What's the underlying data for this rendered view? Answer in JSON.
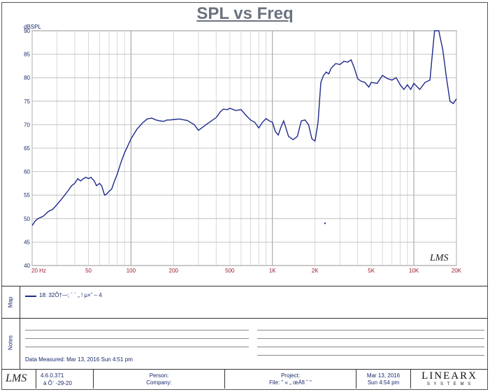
{
  "chart_data": {
    "type": "line",
    "title": "SPL vs Freq",
    "ylabel": "dBSPL",
    "xlabel": "",
    "xscale": "log",
    "xlim": [
      20,
      20000
    ],
    "ylim": [
      40,
      90
    ],
    "grid": true,
    "yticks": [
      "40",
      "45",
      "50",
      "55",
      "60",
      "65",
      "70",
      "75",
      "80",
      "85",
      "90"
    ],
    "xticks": [
      {
        "v": 20,
        "label": "20 Hz"
      },
      {
        "v": 50,
        "label": "50"
      },
      {
        "v": 100,
        "label": "100"
      },
      {
        "v": 200,
        "label": "200"
      },
      {
        "v": 500,
        "label": "500"
      },
      {
        "v": 1000,
        "label": "1K"
      },
      {
        "v": 2000,
        "label": "2K"
      },
      {
        "v": 5000,
        "label": "5K"
      },
      {
        "v": 10000,
        "label": "10K"
      },
      {
        "v": 20000,
        "label": "20K"
      }
    ],
    "series": [
      {
        "name": "18: 32Ô†—; ` ` „ ! µ×˘ – 4",
        "color": "#1f2a8c",
        "x": [
          20,
          21,
          22,
          24,
          26,
          28,
          30,
          32,
          34,
          36,
          38,
          40,
          42,
          44,
          46,
          48,
          50,
          52,
          55,
          57,
          60,
          62,
          65,
          67,
          70,
          73,
          76,
          80,
          85,
          90,
          95,
          100,
          105,
          110,
          120,
          130,
          140,
          150,
          160,
          170,
          180,
          190,
          200,
          220,
          250,
          280,
          300,
          350,
          400,
          430,
          450,
          480,
          500,
          550,
          600,
          650,
          700,
          750,
          800,
          850,
          900,
          950,
          1000,
          1050,
          1100,
          1150,
          1200,
          1300,
          1400,
          1500,
          1600,
          1700,
          1800,
          1900,
          2000,
          2100,
          2200,
          2300,
          2400,
          2500,
          2600,
          2800,
          3000,
          3200,
          3400,
          3600,
          3800,
          4000,
          4200,
          4500,
          4800,
          5000,
          5500,
          6000,
          6500,
          7000,
          7500,
          8000,
          8500,
          9000,
          9500,
          10000,
          11000,
          12000,
          13000,
          13500,
          14000,
          14500,
          15000,
          16000,
          17000,
          18000,
          19000,
          20000
        ],
        "y": [
          48.5,
          49.5,
          50,
          50.5,
          51.5,
          52,
          53,
          54,
          55,
          56,
          57,
          57.5,
          58.5,
          58,
          58.5,
          58.8,
          58.5,
          58.8,
          58,
          57,
          57.5,
          57,
          55,
          55.2,
          55.8,
          56.3,
          57.8,
          59.5,
          62,
          64,
          65.5,
          67,
          68,
          69,
          70.3,
          71.2,
          71.4,
          71,
          70.8,
          70.7,
          71,
          71,
          71.1,
          71.2,
          70.9,
          70,
          68.8,
          70.3,
          71.5,
          72.8,
          73.3,
          73.2,
          73.5,
          73,
          73.2,
          72,
          71,
          70.5,
          69.3,
          70.5,
          71.3,
          70.8,
          70.5,
          68.5,
          67.8,
          69.5,
          70.8,
          67.5,
          66.8,
          67.5,
          70.8,
          71,
          70,
          67,
          66.5,
          70.5,
          79,
          80.5,
          81.2,
          80.8,
          82,
          83,
          82.8,
          83.5,
          83.3,
          83.8,
          82,
          79.8,
          79.3,
          79,
          78,
          79,
          78.8,
          80.5,
          79.8,
          79.5,
          80,
          78.5,
          77.5,
          78.5,
          77.5,
          78.8,
          77.5,
          79,
          79.5,
          85,
          90,
          91,
          90,
          86,
          80,
          75,
          74.5,
          75.5
        ]
      }
    ]
  },
  "watermark": "LMS",
  "legend_section_label": "Map",
  "legend_entry": "18: 32Ô†—; ` ` „ ! µ×˘ – 4",
  "notes_section_label": "Notes",
  "date_measured": "Data Measured: Mar 13, 2016  Sun  4:51 pm",
  "footer": {
    "logo": "LMS",
    "version": "4.6.0.371",
    "version_sub": "à Ô` -29-20",
    "person_label": "Person:",
    "company_label": "Company:",
    "project_label": "Project:",
    "file_label": "File: \" « „ œÀfi ˘ \"",
    "date": "Mar 13, 2016",
    "time": "Sun  4:54 pm",
    "brand": "LINEARX",
    "brand_sub": "S Y S T E M S"
  },
  "stray_point": {
    "x": 2350,
    "y": 49
  }
}
